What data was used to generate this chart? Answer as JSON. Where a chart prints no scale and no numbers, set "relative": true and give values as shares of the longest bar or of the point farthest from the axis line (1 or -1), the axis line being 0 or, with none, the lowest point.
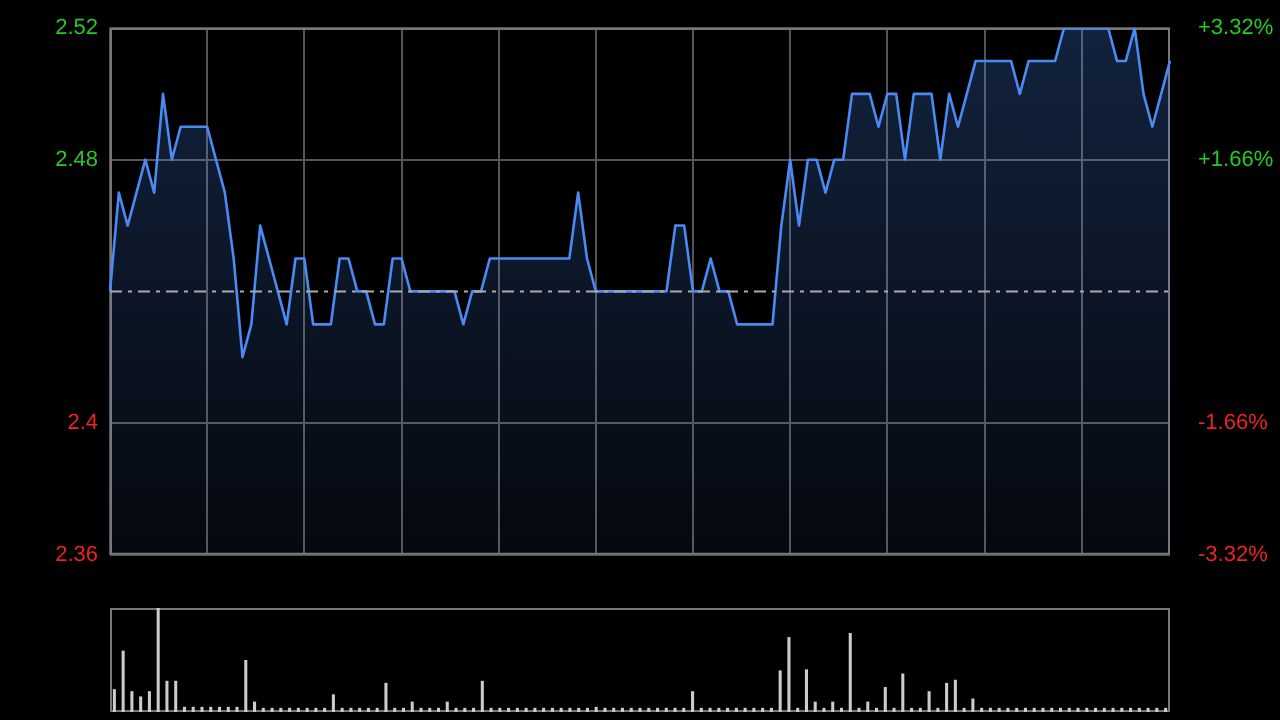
{
  "chart_data": [
    {
      "type": "area",
      "categories": [
        null,
        null,
        null,
        null,
        null,
        null,
        null,
        null,
        null,
        null,
        null,
        null,
        null,
        null,
        null,
        null,
        null,
        null,
        null,
        null,
        null,
        null,
        null,
        null,
        null,
        null,
        null,
        null,
        null,
        null,
        null,
        null,
        null,
        null,
        null,
        null,
        null,
        null,
        null,
        null,
        null,
        null,
        null,
        null,
        null,
        null,
        null,
        null,
        null,
        null,
        null,
        null,
        null,
        null,
        null,
        null,
        null,
        null,
        null,
        null,
        null,
        null,
        null,
        null,
        null,
        null,
        null,
        null,
        null,
        null,
        null,
        null,
        null,
        null,
        null,
        null,
        null,
        null,
        null,
        null,
        null,
        null,
        null,
        null,
        null,
        null,
        null,
        null,
        null,
        null,
        null,
        null,
        null,
        null,
        null,
        null,
        null,
        null,
        null,
        null,
        null,
        null,
        null,
        null,
        null,
        null,
        null,
        null,
        null,
        null,
        null,
        null,
        null,
        null,
        null,
        null,
        null,
        null,
        null,
        null,
        null
      ],
      "series": [
        {
          "color": "#4a8af4",
          "values": [
            2.44,
            2.47,
            2.46,
            2.47,
            2.48,
            2.47,
            2.5,
            2.48,
            2.49,
            2.49,
            2.49,
            2.49,
            2.48,
            2.47,
            2.45,
            2.42,
            2.43,
            2.46,
            2.45,
            2.44,
            2.43,
            2.45,
            2.45,
            2.43,
            2.43,
            2.43,
            2.45,
            2.45,
            2.44,
            2.44,
            2.43,
            2.43,
            2.45,
            2.45,
            2.44,
            2.44,
            2.44,
            2.44,
            2.44,
            2.44,
            2.43,
            2.44,
            2.44,
            2.45,
            2.45,
            2.45,
            2.45,
            2.45,
            2.45,
            2.45,
            2.45,
            2.45,
            2.45,
            2.47,
            2.45,
            2.44,
            2.44,
            2.44,
            2.44,
            2.44,
            2.44,
            2.44,
            2.44,
            2.44,
            2.46,
            2.46,
            2.44,
            2.44,
            2.45,
            2.44,
            2.44,
            2.43,
            2.43,
            2.43,
            2.43,
            2.43,
            2.46,
            2.48,
            2.46,
            2.48,
            2.48,
            2.47,
            2.48,
            2.48,
            2.5,
            2.5,
            2.5,
            2.49,
            2.5,
            2.5,
            2.48,
            2.5,
            2.5,
            2.5,
            2.48,
            2.5,
            2.49,
            2.5,
            2.51,
            2.51,
            2.51,
            2.51,
            2.51,
            2.5,
            2.51,
            2.51,
            2.51,
            2.51,
            2.52,
            2.52,
            2.52,
            2.52,
            2.52,
            2.52,
            2.51,
            2.51,
            2.52,
            2.5,
            2.49,
            2.5,
            2.51
          ]
        }
      ],
      "ylim": [
        2.36,
        2.52
      ],
      "yticks": [
        2.36,
        2.4,
        2.48,
        2.52
      ],
      "y2lim": [
        -3.32,
        3.32
      ],
      "y2ticks": [
        {
          "value": -3.32,
          "label": "-3.32%"
        },
        {
          "value": -1.66,
          "label": "-1.66%"
        },
        {
          "value": 1.66,
          "label": "+1.66%"
        },
        {
          "value": 3.32,
          "label": "+3.32%"
        }
      ],
      "ref_lines": [
        {
          "axis": "y",
          "value": 2.44,
          "color": "#aaaaaa",
          "line_style": "dashed"
        }
      ],
      "grid": true,
      "legend": false,
      "tick_labels": "y"
    },
    {
      "type": "bar",
      "relative": true,
      "categories": [
        null,
        null,
        null,
        null,
        null,
        null,
        null,
        null,
        null,
        null,
        null,
        null,
        null,
        null,
        null,
        null,
        null,
        null,
        null,
        null,
        null,
        null,
        null,
        null,
        null,
        null,
        null,
        null,
        null,
        null,
        null,
        null,
        null,
        null,
        null,
        null,
        null,
        null,
        null,
        null,
        null,
        null,
        null,
        null,
        null,
        null,
        null,
        null,
        null,
        null,
        null,
        null,
        null,
        null,
        null,
        null,
        null,
        null,
        null,
        null,
        null,
        null,
        null,
        null,
        null,
        null,
        null,
        null,
        null,
        null,
        null,
        null,
        null,
        null,
        null,
        null,
        null,
        null,
        null,
        null,
        null,
        null,
        null,
        null,
        null,
        null,
        null,
        null,
        null,
        null,
        null,
        null,
        null,
        null,
        null,
        null,
        null,
        null,
        null,
        null,
        null,
        null,
        null,
        null,
        null,
        null,
        null,
        null,
        null,
        null,
        null,
        null,
        null,
        null,
        null,
        null,
        null,
        null,
        null,
        null,
        null
      ],
      "color": "#cccccc",
      "values": [
        0.22,
        0.59,
        0.2,
        0.15,
        0.2,
        1,
        0.3,
        0.3,
        0.05,
        0.05,
        0.05,
        0.05,
        0.05,
        0.05,
        0.05,
        0.5,
        0.1,
        0.04,
        0.04,
        0.04,
        0.04,
        0.04,
        0.04,
        0.04,
        0.04,
        0.17,
        0.04,
        0.04,
        0.04,
        0.04,
        0.04,
        0.28,
        0.04,
        0.04,
        0.1,
        0.04,
        0.04,
        0.04,
        0.1,
        0.04,
        0.04,
        0.04,
        0.3,
        0.04,
        0.04,
        0.04,
        0.04,
        0.04,
        0.04,
        0.04,
        0.04,
        0.04,
        0.04,
        0.04,
        0.04,
        0.05,
        0.04,
        0.04,
        0.04,
        0.04,
        0.04,
        0.04,
        0.04,
        0.04,
        0.04,
        0.04,
        0.2,
        0.04,
        0.04,
        0.04,
        0.04,
        0.04,
        0.04,
        0.04,
        0.04,
        0.04,
        0.4,
        0.72,
        0.04,
        0.41,
        0.1,
        0.04,
        0.1,
        0.04,
        0.76,
        0.04,
        0.1,
        0.04,
        0.24,
        0.04,
        0.37,
        0.04,
        0.04,
        0.2,
        0.04,
        0.28,
        0.31,
        0.04,
        0.13,
        0.04,
        0.04,
        0.04,
        0.04,
        0.04,
        0.04,
        0.04,
        0.04,
        0.04,
        0.04,
        0.04,
        0.04,
        0.04,
        0.04,
        0.04,
        0.04,
        0.04,
        0.04,
        0.04,
        0.04,
        0.04,
        0.04
      ],
      "legend": false
    }
  ]
}
